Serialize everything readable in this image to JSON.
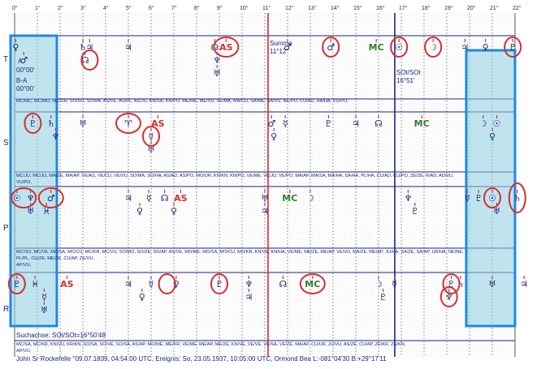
{
  "degree_ticks": [
    "0°",
    "1°",
    "2°",
    "3°",
    "4°",
    "5°",
    "6°",
    "7°",
    "8°",
    "9°",
    "10°",
    "11°",
    "12°",
    "13°",
    "14°",
    "15°",
    "16°",
    "17°",
    "18°",
    "19°",
    "20°",
    "21°",
    "22°"
  ],
  "rows": [
    "T",
    "S",
    "P",
    "R"
  ],
  "annotations": {
    "a_mark": "A",
    "a_value": "00°00'",
    "ba_mark": "B-A",
    "ba_value": "00°00'",
    "summe_label": "Summe",
    "summe_value": "11°12'",
    "soft_label": "SOt/SOt",
    "soft_value": "16°51'"
  },
  "strips": {
    "t": "MC/MC, MC/MO, MC/UR, SO/SO, SO/HA, AS/VE, AS/PL, AS/JU, KN/SA, KN/PO, ME/ME, ME/VU, VE/MA, MA/CU, SA/ME, SA/VU, NE/PO, CU/AD, HA/HA, VU/PO,",
    "s1": "MC/JU, MC/JU, MA/ZE, MA/AP, VE/AS, VE/CU, VE/VU, SO/MA, SO/HA, AS/AD, AS/PO, MO/UR, KN/KN, KN/PO, VE/ME, VE/JU, VE/PO, MA/AP, MA/SA, MA/HA, SA/HA, PL/HA, CU/AD, CU/PO, ZE/ZE, R/AD, AD/VU,",
    "s2": "VU/PO,",
    "p1": "MC/SO, MC/VE, MC/SA, MC/CU, MC/KR, MC/VU, SO/MO, SO/ZE, SO/AP, AS/VE, MO/ME, MO/SA, MO/CU, MO/KR, KN/VE, KN/HA, VE/ME, ME/ZE, ME/AP, VE/VU, MA/ZE, ME/AP, JU/HA, SA/ZE, SA/AP, UR/HA, NE/NE,",
    "p2": "PL/PL, CU/ZE, ME/ZE, CU/AP, ZE/VU,",
    "p3": "AP/VU,",
    "r1": "MC/SA, MC/KR, KN/VU, KR/KN, SO/SA, SO/VE, SO/SA, AS/AP, MO/ME, ME/KR, VE/ME, ME/AP, ME/ZE, KN/VE, VE/VE, VE/SA, VE/ZE, MA/AP, CU/UR, JU/VU, AS/ZE, CU/AP, ZE/KR, ZE/KN,",
    "r2": "AP/VU,"
  },
  "footer": {
    "suchachse": "Suchachse: SOt/SOt=16°50'48",
    "line": "John Sr Rockefelle  °09.07.1839, 04:54:00 UTC, Ereignis: So, 23.05.1937, 10:05:00 UTC, Ormond Bea        L:-081°04'30 B:+29°17'11"
  },
  "glyphs": [
    {
      "n": "t-sun",
      "g": "♀",
      "row": "T",
      "deg": 0.05,
      "lv": 0,
      "c": "#1a237e"
    },
    {
      "n": "t-a",
      "g": "♂",
      "row": "T",
      "deg": 0.4,
      "lv": 1,
      "c": "#1a237e"
    },
    {
      "n": "t-saturn",
      "g": "♄",
      "row": "T",
      "deg": 3.0,
      "lv": 0,
      "c": "#1a237e"
    },
    {
      "n": "t-jupiter",
      "g": "♃",
      "row": "T",
      "deg": 3.3,
      "lv": 0,
      "c": "#1a237e"
    },
    {
      "n": "t-node",
      "g": "☊",
      "row": "T",
      "deg": 3.1,
      "lv": 1,
      "c": "#1a237e"
    },
    {
      "n": "t-jup2",
      "g": "♃",
      "row": "T",
      "deg": 5.0,
      "lv": 0,
      "c": "#1a237e"
    },
    {
      "n": "t-omega",
      "g": "☊",
      "row": "T",
      "deg": 8.8,
      "lv": 0,
      "c": "#1a237e"
    },
    {
      "n": "t-as",
      "g": "AS",
      "row": "T",
      "deg": 9.3,
      "lv": 0,
      "c": "#d32f2f"
    },
    {
      "n": "t-psi",
      "g": "♆",
      "row": "T",
      "deg": 8.9,
      "lv": 1,
      "c": "#1a237e"
    },
    {
      "n": "t-arrow",
      "g": "♅",
      "row": "T",
      "deg": 8.9,
      "lv": 2,
      "c": "#1a237e"
    },
    {
      "n": "t-mars",
      "g": "♂",
      "row": "T",
      "deg": 12.0,
      "lv": 0,
      "c": "#1a237e"
    },
    {
      "n": "t-mars2",
      "g": "♂",
      "row": "T",
      "deg": 13.9,
      "lv": 0,
      "c": "#1a237e"
    },
    {
      "n": "t-mc",
      "g": "MC",
      "row": "T",
      "deg": 15.9,
      "lv": 0,
      "c": "#2e7d32"
    },
    {
      "n": "t-sun2",
      "g": "☉",
      "row": "T",
      "deg": 16.9,
      "lv": 0,
      "c": "#1a237e"
    },
    {
      "n": "t-moon",
      "g": "☽",
      "row": "T",
      "deg": 18.4,
      "lv": 0,
      "c": "#1a237e"
    },
    {
      "n": "t-jup3",
      "g": "♃",
      "row": "T",
      "deg": 19.8,
      "lv": 0,
      "c": "#1a237e"
    },
    {
      "n": "t-venus",
      "g": "♀",
      "row": "T",
      "deg": 20.7,
      "lv": 0,
      "c": "#1a237e"
    },
    {
      "n": "t-pluto",
      "g": "♇",
      "row": "T",
      "deg": 21.9,
      "lv": 0,
      "c": "#1a237e"
    },
    {
      "n": "s-pluto",
      "g": "♇",
      "row": "S",
      "deg": 0.8,
      "lv": 0,
      "c": "#1a237e"
    },
    {
      "n": "s-sat",
      "g": "♄",
      "row": "S",
      "deg": 1.6,
      "lv": 0,
      "c": "#1a237e"
    },
    {
      "n": "s-nep",
      "g": "♆",
      "row": "S",
      "deg": 1.8,
      "lv": 1,
      "c": "#1a237e"
    },
    {
      "n": "s-up",
      "g": "♅",
      "row": "S",
      "deg": 3.0,
      "lv": 0,
      "c": "#1a237e"
    },
    {
      "n": "s-aries",
      "g": "♈",
      "row": "S",
      "deg": 5.0,
      "lv": 0,
      "c": "#1a237e"
    },
    {
      "n": "s-as",
      "g": "AS",
      "row": "S",
      "deg": 6.3,
      "lv": 0,
      "c": "#d32f2f"
    },
    {
      "n": "s-merc",
      "g": "☿",
      "row": "S",
      "deg": 6.0,
      "lv": 1,
      "c": "#1a237e"
    },
    {
      "n": "s-fig",
      "g": "♅",
      "row": "S",
      "deg": 6.0,
      "lv": 2,
      "c": "#1a237e"
    },
    {
      "n": "s-mars",
      "g": "♂",
      "row": "S",
      "deg": 11.3,
      "lv": 0,
      "c": "#1a237e"
    },
    {
      "n": "s-merc2",
      "g": "☿",
      "row": "S",
      "deg": 11.9,
      "lv": 0,
      "c": "#1a237e"
    },
    {
      "n": "s-venus",
      "g": "♀",
      "row": "S",
      "deg": 11.4,
      "lv": 1,
      "c": "#1a237e"
    },
    {
      "n": "s-plu2",
      "g": "♇",
      "row": "S",
      "deg": 13.8,
      "lv": 0,
      "c": "#1a237e"
    },
    {
      "n": "s-jup",
      "g": "♃",
      "row": "S",
      "deg": 15.0,
      "lv": 0,
      "c": "#1a237e"
    },
    {
      "n": "s-node",
      "g": "☊",
      "row": "S",
      "deg": 16.0,
      "lv": 0,
      "c": "#1a237e"
    },
    {
      "n": "s-mc",
      "g": "MC",
      "row": "S",
      "deg": 17.9,
      "lv": 0,
      "c": "#2e7d32"
    },
    {
      "n": "s-moon",
      "g": "☽",
      "row": "S",
      "deg": 20.6,
      "lv": 0,
      "c": "#1a237e"
    },
    {
      "n": "s-sun",
      "g": "☉",
      "row": "S",
      "deg": 21.2,
      "lv": 0,
      "c": "#1a237e"
    },
    {
      "n": "s-ven2",
      "g": "♀",
      "row": "S",
      "deg": 21.0,
      "lv": 1,
      "c": "#1a237e"
    },
    {
      "n": "p-sun",
      "g": "☉",
      "row": "P",
      "deg": 0.1,
      "lv": 0,
      "c": "#1a237e"
    },
    {
      "n": "p-nep",
      "g": "♆",
      "row": "P",
      "deg": 0.7,
      "lv": 0,
      "c": "#1a237e"
    },
    {
      "n": "p-mars",
      "g": "♂",
      "row": "P",
      "deg": 1.6,
      "lv": 0,
      "c": "#1a237e"
    },
    {
      "n": "p-up",
      "g": "♅",
      "row": "P",
      "deg": 0.7,
      "lv": 1,
      "c": "#1a237e"
    },
    {
      "n": "p-x",
      "g": "♓",
      "row": "P",
      "deg": 1.4,
      "lv": 1,
      "c": "#1a237e"
    },
    {
      "n": "p-jup",
      "g": "♃",
      "row": "P",
      "deg": 5.0,
      "lv": 0,
      "c": "#1a237e"
    },
    {
      "n": "p-merc",
      "g": "☿",
      "row": "P",
      "deg": 5.9,
      "lv": 0,
      "c": "#1a237e"
    },
    {
      "n": "p-om",
      "g": "☊",
      "row": "P",
      "deg": 6.6,
      "lv": 0,
      "c": "#1a237e"
    },
    {
      "n": "p-as",
      "g": "AS",
      "row": "P",
      "deg": 7.3,
      "lv": 0,
      "c": "#d32f2f"
    },
    {
      "n": "p-c",
      "g": "♀",
      "row": "P",
      "deg": 5.5,
      "lv": 1,
      "c": "#1a237e"
    },
    {
      "n": "p-v",
      "g": "♀",
      "row": "P",
      "deg": 7.0,
      "lv": 1,
      "c": "#1a237e"
    },
    {
      "n": "p-up2",
      "g": "♅",
      "row": "P",
      "deg": 11.0,
      "lv": 0,
      "c": "#1a237e"
    },
    {
      "n": "p-jup2",
      "g": "♃",
      "row": "P",
      "deg": 11.0,
      "lv": 1,
      "c": "#1a237e"
    },
    {
      "n": "p-mc",
      "g": "MC",
      "row": "P",
      "deg": 12.1,
      "lv": 0,
      "c": "#2e7d32"
    },
    {
      "n": "p-moon",
      "g": "☽",
      "row": "P",
      "deg": 13.0,
      "lv": 0,
      "c": "#1a237e"
    },
    {
      "n": "p-nep2",
      "g": "♆",
      "row": "P",
      "deg": 17.3,
      "lv": 0,
      "c": "#1a237e"
    },
    {
      "n": "p-plu",
      "g": "♇",
      "row": "P",
      "deg": 17.6,
      "lv": 1,
      "c": "#1a237e"
    },
    {
      "n": "p-merc2",
      "g": "☿",
      "row": "P",
      "deg": 19.9,
      "lv": 0,
      "c": "#1a237e"
    },
    {
      "n": "p-plu2",
      "g": "♇",
      "row": "P",
      "deg": 20.4,
      "lv": 0,
      "c": "#1a237e"
    },
    {
      "n": "p-sun2",
      "g": "☉",
      "row": "P",
      "deg": 21.0,
      "lv": 0,
      "c": "#1a237e"
    },
    {
      "n": "p-sat",
      "g": "♄",
      "row": "P",
      "deg": 22.1,
      "lv": 0,
      "c": "#1a237e"
    },
    {
      "n": "p-up3",
      "g": "♅",
      "row": "P",
      "deg": 21.2,
      "lv": 1,
      "c": "#1a237e"
    },
    {
      "n": "r-plu",
      "g": "♇",
      "row": "R",
      "deg": 0.1,
      "lv": 0,
      "c": "#1a237e"
    },
    {
      "n": "r-x",
      "g": "♓",
      "row": "R",
      "deg": 0.9,
      "lv": 0,
      "c": "#1a237e"
    },
    {
      "n": "r-as",
      "g": "AS",
      "row": "R",
      "deg": 2.3,
      "lv": 0,
      "c": "#d32f2f"
    },
    {
      "n": "r-merc",
      "g": "☿",
      "row": "R",
      "deg": 1.3,
      "lv": 1,
      "c": "#1a237e"
    },
    {
      "n": "r-up",
      "g": "♅",
      "row": "R",
      "deg": 1.3,
      "lv": 2,
      "c": "#1a237e"
    },
    {
      "n": "r-jup",
      "g": "♃",
      "row": "R",
      "deg": 5.0,
      "lv": 0,
      "c": "#1a237e"
    },
    {
      "n": "r-merc2",
      "g": "☿",
      "row": "R",
      "deg": 6.0,
      "lv": 0,
      "c": "#1a237e"
    },
    {
      "n": "r-ven",
      "g": "♀",
      "row": "R",
      "deg": 7.1,
      "lv": 0,
      "c": "#1a237e"
    },
    {
      "n": "r-c",
      "g": "♀",
      "row": "R",
      "deg": 5.6,
      "lv": 1,
      "c": "#1a237e"
    },
    {
      "n": "r-plu2",
      "g": "♇",
      "row": "R",
      "deg": 9.0,
      "lv": 0,
      "c": "#1a237e"
    },
    {
      "n": "r-nep",
      "g": "♆",
      "row": "R",
      "deg": 10.3,
      "lv": 0,
      "c": "#1a237e"
    },
    {
      "n": "r-jup2",
      "g": "♃",
      "row": "R",
      "deg": 10.3,
      "lv": 1,
      "c": "#1a237e"
    },
    {
      "n": "r-node",
      "g": "☊",
      "row": "R",
      "deg": 11.8,
      "lv": 0,
      "c": "#1a237e"
    },
    {
      "n": "r-mc",
      "g": "MC",
      "row": "R",
      "deg": 13.1,
      "lv": 0,
      "c": "#2e7d32"
    },
    {
      "n": "r-moon",
      "g": "☽",
      "row": "R",
      "deg": 16.0,
      "lv": 0,
      "c": "#1a237e"
    },
    {
      "n": "r-merc3",
      "g": "☿",
      "row": "R",
      "deg": 16.7,
      "lv": 0,
      "c": "#1a237e"
    },
    {
      "n": "r-plu3",
      "g": "♇",
      "row": "R",
      "deg": 16.2,
      "lv": 1,
      "c": "#1a237e"
    },
    {
      "n": "r-pl4",
      "g": "♇",
      "row": "R",
      "deg": 19.2,
      "lv": 0,
      "c": "#1a237e"
    },
    {
      "n": "r-sat",
      "g": "♄",
      "row": "R",
      "deg": 19.6,
      "lv": 0,
      "c": "#1a237e"
    },
    {
      "n": "r-nep2",
      "g": "♆",
      "row": "R",
      "deg": 19.1,
      "lv": 1,
      "c": "#1a237e"
    },
    {
      "n": "r-up2",
      "g": "♅",
      "row": "R",
      "deg": 21.0,
      "lv": 0,
      "c": "#1a237e"
    },
    {
      "n": "r-jup3",
      "g": "♃",
      "row": "R",
      "deg": 22.4,
      "lv": 0,
      "c": "#1a237e"
    }
  ],
  "circles": [
    {
      "row": "T",
      "deg": 3.3,
      "lv": 1
    },
    {
      "row": "T",
      "deg": 13.9,
      "lv": 0
    },
    {
      "row": "T",
      "deg": 16.9,
      "lv": 0
    },
    {
      "row": "T",
      "deg": 18.4,
      "lv": 0
    },
    {
      "row": "T",
      "deg": 21.9,
      "lv": 0
    },
    {
      "row": "T",
      "deg": 9.3,
      "lv": 0,
      "wide": 1
    },
    {
      "row": "S",
      "deg": 0.8,
      "lv": 0
    },
    {
      "row": "S",
      "deg": 5.0,
      "lv": 0,
      "wide": 1
    },
    {
      "row": "S",
      "deg": 6.0,
      "lv": 1
    },
    {
      "row": "P",
      "deg": 0.4,
      "lv": 0,
      "wide": 1
    },
    {
      "row": "P",
      "deg": 1.6,
      "lv": 0,
      "wide": 1
    },
    {
      "row": "P",
      "deg": 21.0,
      "lv": 0
    },
    {
      "row": "P",
      "deg": 22.1,
      "lv": 0,
      "tall": 1
    },
    {
      "row": "R",
      "deg": 0.1,
      "lv": 0
    },
    {
      "row": "R",
      "deg": 6.7,
      "lv": 0
    },
    {
      "row": "R",
      "deg": 9.0,
      "lv": 0
    },
    {
      "row": "R",
      "deg": 13.1,
      "lv": 0,
      "wide": 1
    },
    {
      "row": "R",
      "deg": 19.2,
      "lv": 0
    },
    {
      "row": "R",
      "deg": 19.1,
      "lv": 1
    }
  ],
  "colors": {
    "ink": "#1a237e",
    "highlight": "#d32f2f",
    "band": "#8ecfe2",
    "band_border": "#1e88e5",
    "mc": "#2e7d32"
  }
}
